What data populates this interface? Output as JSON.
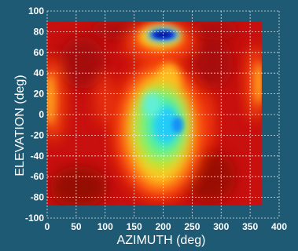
{
  "chart_data": {
    "type": "heatmap",
    "title": "",
    "xlabel": "AZIMUTH (deg)",
    "ylabel": "ELEVATION (deg)",
    "xlim": [
      0,
      400
    ],
    "ylim": [
      -100,
      100
    ],
    "x_ticks": [
      0,
      50,
      100,
      150,
      200,
      250,
      300,
      350,
      400
    ],
    "y_ticks": [
      -100,
      -80,
      -60,
      -40,
      -20,
      0,
      20,
      40,
      60,
      80,
      100
    ],
    "grid": true,
    "data_extent": {
      "azimuth": [
        0,
        370
      ],
      "elevation": [
        -88,
        90
      ]
    },
    "colormap": "jet-like (blue-cyan-green-yellow-red-darkred)",
    "colors": {
      "background": "#1e5a74",
      "grid": "#ffffff",
      "base": "#c8100e"
    },
    "features": [
      {
        "name": "central-low-region",
        "azimuth": 195,
        "elevation": -10,
        "level": 0.35
      },
      {
        "name": "top-low-spot",
        "azimuth": 200,
        "elevation": 77,
        "level": 0.0
      },
      {
        "name": "left-edge-high",
        "azimuth": 5,
        "elevation": 15,
        "level": 0.7
      },
      {
        "name": "right-edge-high",
        "azimuth": 365,
        "elevation": 30,
        "level": 0.7
      }
    ]
  }
}
